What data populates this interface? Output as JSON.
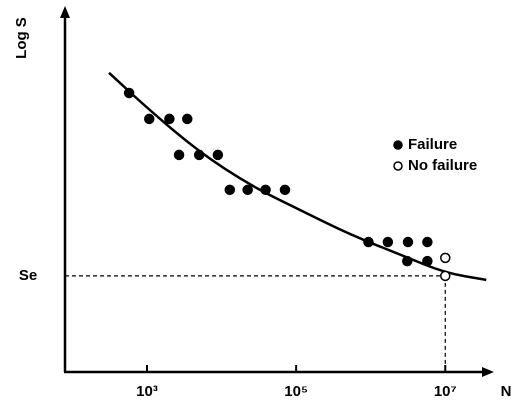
{
  "chart_data": {
    "type": "scatter",
    "y_label": "Log S",
    "x_label": "N",
    "xlim": [
      1.9,
      7.6
    ],
    "ylim": [
      0,
      10
    ],
    "xticks": [
      {
        "value": 3,
        "label": "10³"
      },
      {
        "value": 5,
        "label": "10⁵"
      },
      {
        "value": 7,
        "label": "10⁷"
      }
    ],
    "yticks": [
      {
        "value": 2.67,
        "label": "Se"
      }
    ],
    "legend": "right",
    "series": [
      {
        "name": "Failure",
        "color": "#000000",
        "filled": true,
        "x": [
          2.76,
          3.03,
          3.3,
          3.54,
          3.43,
          3.7,
          3.95,
          4.11,
          4.35,
          4.59,
          4.85,
          5.97,
          6.23,
          6.5,
          6.76,
          6.49,
          6.76
        ],
        "values": [
          7.75,
          7.03,
          7.03,
          7.03,
          6.03,
          6.03,
          6.03,
          5.06,
          5.06,
          5.06,
          5.06,
          3.61,
          3.61,
          3.61,
          3.61,
          3.08,
          3.08
        ]
      },
      {
        "name": "No failure",
        "color": "#000000",
        "filled": false,
        "x": [
          7.0,
          7.0
        ],
        "values": [
          3.17,
          2.67
        ]
      }
    ],
    "curve": {
      "x": [
        2.49,
        3.03,
        3.7,
        4.38,
        5.05,
        5.73,
        6.41,
        7.0,
        7.55
      ],
      "values": [
        8.31,
        7.28,
        6.11,
        5.19,
        4.5,
        3.81,
        3.25,
        2.75,
        2.56
      ]
    }
  }
}
